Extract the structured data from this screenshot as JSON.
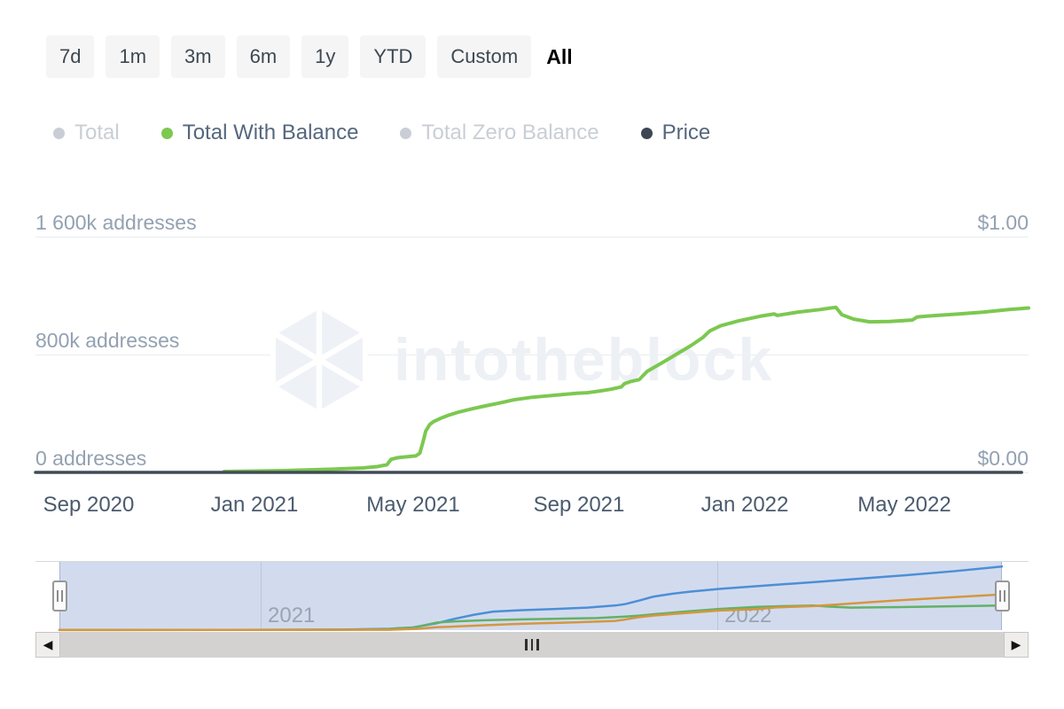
{
  "toolbar": {
    "ranges": [
      {
        "label": "7d",
        "active": false
      },
      {
        "label": "1m",
        "active": false
      },
      {
        "label": "3m",
        "active": false
      },
      {
        "label": "6m",
        "active": false
      },
      {
        "label": "1y",
        "active": false
      },
      {
        "label": "YTD",
        "active": false
      },
      {
        "label": "Custom",
        "active": false
      },
      {
        "label": "All",
        "active": true
      }
    ]
  },
  "legend": {
    "items": [
      {
        "label": "Total",
        "color": "#c9ced6",
        "text_color": "#c9ced6",
        "active": false
      },
      {
        "label": "Total With Balance",
        "color": "#7cc850",
        "text_color": "#55677d",
        "active": true
      },
      {
        "label": "Total Zero Balance",
        "color": "#c9ced6",
        "text_color": "#c9ced6",
        "active": false
      },
      {
        "label": "Price",
        "color": "#3d4754",
        "text_color": "#55677d",
        "active": true
      }
    ]
  },
  "watermark": {
    "text": "intotheblock"
  },
  "chart_data": [
    {
      "id": "main",
      "type": "line",
      "title": "Addresses over time",
      "x_ticks": [
        "Sep 2020",
        "Jan 2021",
        "May 2021",
        "Sep 2021",
        "Jan 2022",
        "May 2022"
      ],
      "x_range_note": "u is fraction of x-axis, spanning ~Aug 2020 to ~Jul 2022",
      "y_left": {
        "ticks": [
          "1 600k addresses",
          "800k addresses",
          "0 addresses"
        ],
        "ylim": [
          0,
          1600
        ],
        "unit": "k addresses"
      },
      "y_right": {
        "ticks": [
          "$1.00",
          "$0.00"
        ],
        "ylim": [
          0,
          1
        ],
        "unit": "USD"
      },
      "grid": true,
      "legend_position": "top",
      "series": [
        {
          "name": "Total With Balance",
          "color": "#7cc850",
          "axis": "left",
          "unit": "k addresses",
          "ylim": [
            0,
            1600
          ],
          "stroke_width": 4,
          "points": [
            [
              0.19,
              6
            ],
            [
              0.25,
              12
            ],
            [
              0.3,
              22
            ],
            [
              0.33,
              30
            ],
            [
              0.345,
              40
            ],
            [
              0.354,
              52
            ],
            [
              0.358,
              88
            ],
            [
              0.365,
              100
            ],
            [
              0.374,
              106
            ],
            [
              0.383,
              112
            ],
            [
              0.387,
              130
            ],
            [
              0.39,
              200
            ],
            [
              0.393,
              280
            ],
            [
              0.397,
              325
            ],
            [
              0.401,
              345
            ],
            [
              0.408,
              367
            ],
            [
              0.416,
              388
            ],
            [
              0.426,
              409
            ],
            [
              0.44,
              432
            ],
            [
              0.453,
              451
            ],
            [
              0.468,
              472
            ],
            [
              0.482,
              493
            ],
            [
              0.498,
              508
            ],
            [
              0.512,
              517
            ],
            [
              0.53,
              528
            ],
            [
              0.545,
              537
            ],
            [
              0.556,
              541
            ],
            [
              0.568,
              552
            ],
            [
              0.58,
              565
            ],
            [
              0.59,
              580
            ],
            [
              0.593,
              602
            ],
            [
              0.6,
              618
            ],
            [
              0.608,
              630
            ],
            [
              0.616,
              686
            ],
            [
              0.63,
              740
            ],
            [
              0.645,
              800
            ],
            [
              0.66,
              860
            ],
            [
              0.672,
              915
            ],
            [
              0.679,
              960
            ],
            [
              0.69,
              995
            ],
            [
              0.708,
              1028
            ],
            [
              0.73,
              1060
            ],
            [
              0.744,
              1075
            ],
            [
              0.747,
              1065
            ],
            [
              0.768,
              1088
            ],
            [
              0.79,
              1105
            ],
            [
              0.8,
              1115
            ],
            [
              0.806,
              1120
            ],
            [
              0.812,
              1070
            ],
            [
              0.824,
              1040
            ],
            [
              0.84,
              1022
            ],
            [
              0.86,
              1024
            ],
            [
              0.883,
              1034
            ],
            [
              0.888,
              1055
            ],
            [
              0.9,
              1062
            ],
            [
              0.93,
              1075
            ],
            [
              0.955,
              1088
            ],
            [
              0.98,
              1105
            ],
            [
              1.0,
              1116
            ]
          ]
        },
        {
          "name": "Price",
          "color": "#414b57",
          "axis": "right",
          "unit": "USD",
          "ylim": [
            0,
            1
          ],
          "stroke_width": 3.5,
          "points": [
            [
              0.0,
              0.0
            ],
            [
              0.993,
              0.0
            ]
          ]
        }
      ]
    },
    {
      "id": "navigator",
      "type": "line",
      "title": "Navigator (full history preview)",
      "x_ticks": [
        "2021",
        "2022"
      ],
      "grid": true,
      "series": [
        {
          "name": "Total",
          "color": "#4c8fd6",
          "axis": "left",
          "unit": "k addresses",
          "ylim": [
            0,
            3100
          ],
          "stroke_width": 2.5,
          "points": [
            [
              0.0,
              8
            ],
            [
              0.2,
              12
            ],
            [
              0.3,
              25
            ],
            [
              0.35,
              60
            ],
            [
              0.375,
              120
            ],
            [
              0.4,
              310
            ],
            [
              0.42,
              520
            ],
            [
              0.44,
              700
            ],
            [
              0.46,
              840
            ],
            [
              0.49,
              905
            ],
            [
              0.52,
              950
            ],
            [
              0.56,
              1020
            ],
            [
              0.59,
              1120
            ],
            [
              0.6,
              1180
            ],
            [
              0.615,
              1340
            ],
            [
              0.63,
              1520
            ],
            [
              0.65,
              1650
            ],
            [
              0.67,
              1750
            ],
            [
              0.7,
              1870
            ],
            [
              0.75,
              2030
            ],
            [
              0.8,
              2180
            ],
            [
              0.85,
              2340
            ],
            [
              0.9,
              2500
            ],
            [
              0.95,
              2680
            ],
            [
              1.0,
              2890
            ]
          ]
        },
        {
          "name": "Total With Balance",
          "color": "#63b167",
          "axis": "left",
          "unit": "k addresses",
          "ylim": [
            0,
            3100
          ],
          "stroke_width": 2.5,
          "points": [
            [
              0.0,
              3
            ],
            [
              0.3,
              15
            ],
            [
              0.35,
              45
            ],
            [
              0.36,
              90
            ],
            [
              0.375,
              108
            ],
            [
              0.39,
              250
            ],
            [
              0.4,
              340
            ],
            [
              0.42,
              400
            ],
            [
              0.45,
              450
            ],
            [
              0.49,
              490
            ],
            [
              0.53,
              520
            ],
            [
              0.57,
              548
            ],
            [
              0.6,
              615
            ],
            [
              0.615,
              660
            ],
            [
              0.63,
              720
            ],
            [
              0.66,
              830
            ],
            [
              0.7,
              960
            ],
            [
              0.74,
              1055
            ],
            [
              0.77,
              1090
            ],
            [
              0.8,
              1118
            ],
            [
              0.815,
              1070
            ],
            [
              0.84,
              1022
            ],
            [
              0.88,
              1040
            ],
            [
              0.93,
              1072
            ],
            [
              1.0,
              1116
            ]
          ]
        },
        {
          "name": "Total Zero Balance",
          "color": "#d6963f",
          "axis": "left",
          "unit": "k addresses",
          "ylim": [
            0,
            3100
          ],
          "stroke_width": 2.5,
          "points": [
            [
              0.0,
              5
            ],
            [
              0.35,
              15
            ],
            [
              0.38,
              60
            ],
            [
              0.4,
              130
            ],
            [
              0.44,
              200
            ],
            [
              0.48,
              270
            ],
            [
              0.51,
              310
            ],
            [
              0.55,
              355
            ],
            [
              0.59,
              420
            ],
            [
              0.6,
              480
            ],
            [
              0.615,
              590
            ],
            [
              0.63,
              660
            ],
            [
              0.66,
              760
            ],
            [
              0.7,
              890
            ],
            [
              0.74,
              950
            ],
            [
              0.76,
              1030
            ],
            [
              0.8,
              1090
            ],
            [
              0.83,
              1180
            ],
            [
              0.86,
              1270
            ],
            [
              0.9,
              1380
            ],
            [
              0.95,
              1500
            ],
            [
              1.0,
              1620
            ]
          ]
        }
      ]
    }
  ],
  "navigator": {
    "year_labels": [
      "2021",
      "2022"
    ],
    "scrollbar": {
      "left_arrow": "◀",
      "right_arrow": "▶"
    }
  }
}
